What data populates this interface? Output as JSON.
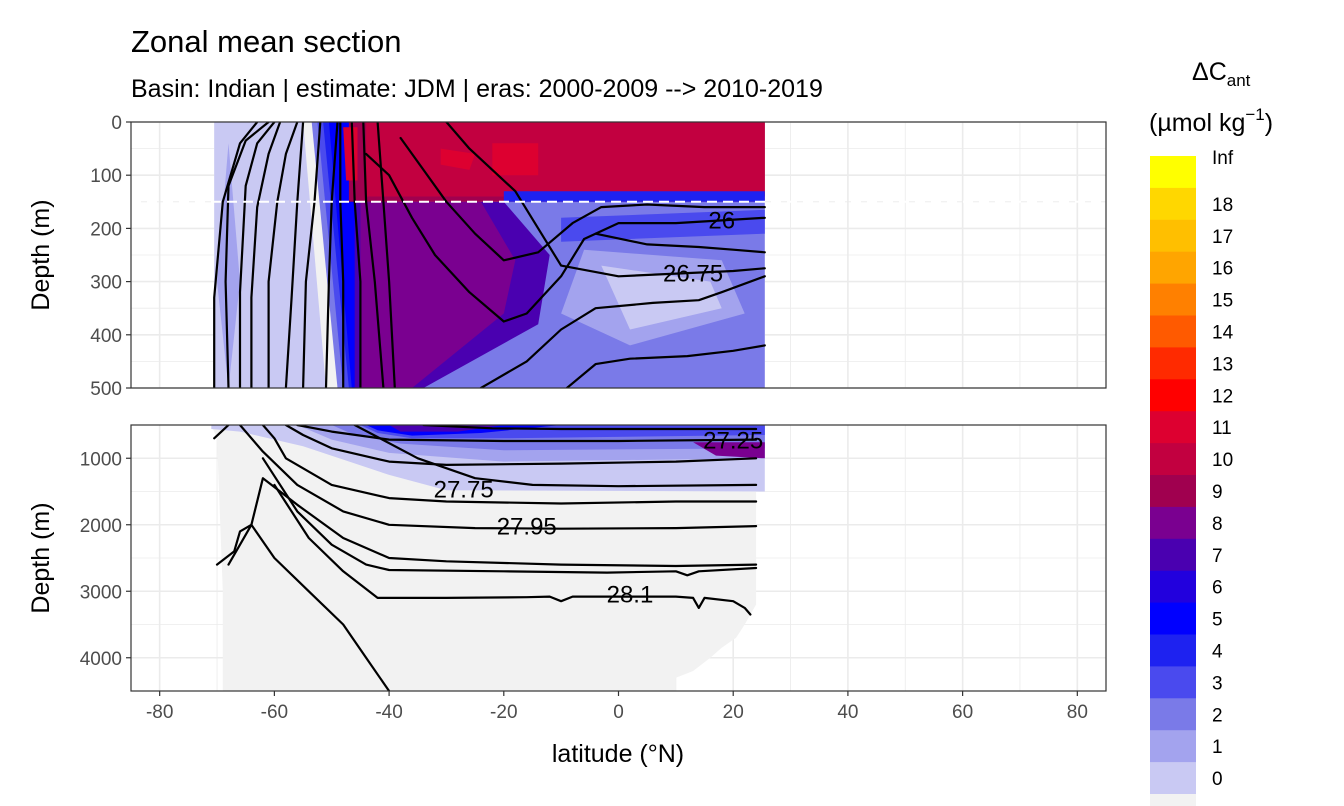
{
  "title": "Zonal mean section",
  "subtitle": "Basin: Indian | estimate: JDM  | eras: 2000-2009 --> 2010-2019",
  "chart_data": {
    "type": "heatmap",
    "xlabel": "latitude (°N)",
    "ylabel": "Depth (m)",
    "x_ticks": [
      -80,
      -60,
      -40,
      -20,
      0,
      20,
      40,
      60,
      80
    ],
    "xlim": [
      -85,
      85
    ],
    "panels": [
      {
        "name": "upper",
        "ylim": [
          0,
          500
        ],
        "y_ticks": [
          0,
          100,
          200,
          300,
          400,
          500
        ]
      },
      {
        "name": "lower",
        "ylim": [
          500,
          4500
        ],
        "y_ticks": [
          1000,
          2000,
          3000,
          4000
        ]
      }
    ],
    "reference_line_depth": 150,
    "legend": {
      "title_main": "ΔC",
      "title_sub": "ant",
      "unit_main": "(µmol kg",
      "unit_sup": "−1",
      "unit_end": ")",
      "placement": "right",
      "levels": [
        "Inf",
        "18",
        "17",
        "16",
        "15",
        "14",
        "13",
        "12",
        "11",
        "10",
        "9",
        "8",
        "7",
        "6",
        "5",
        "4",
        "3",
        "2",
        "1",
        "0"
      ],
      "colors": [
        "#ffff00",
        "#ffd700",
        "#ffbf00",
        "#ffa500",
        "#ff8000",
        "#ff5a00",
        "#ff2a00",
        "#ff0000",
        "#dd0030",
        "#c20040",
        "#a0004f",
        "#7a0090",
        "#4a00b0",
        "#2200dd",
        "#0000ff",
        "#1e22f0",
        "#4a4aee",
        "#7a7ae8",
        "#a3a3ee",
        "#c9c9f3",
        "#f2f2f2"
      ]
    },
    "contour_labels": [
      {
        "text": "26",
        "lat": 18,
        "depth": 185
      },
      {
        "text": "26.75",
        "lat": 13,
        "depth": 285
      },
      {
        "text": "27.25",
        "lat": 20,
        "depth": 730
      },
      {
        "text": "27.75",
        "lat": -27,
        "depth": 1470
      },
      {
        "text": "27.95",
        "lat": -16,
        "depth": 2030
      },
      {
        "text": "28.1",
        "lat": 2,
        "depth": 3050
      }
    ]
  }
}
